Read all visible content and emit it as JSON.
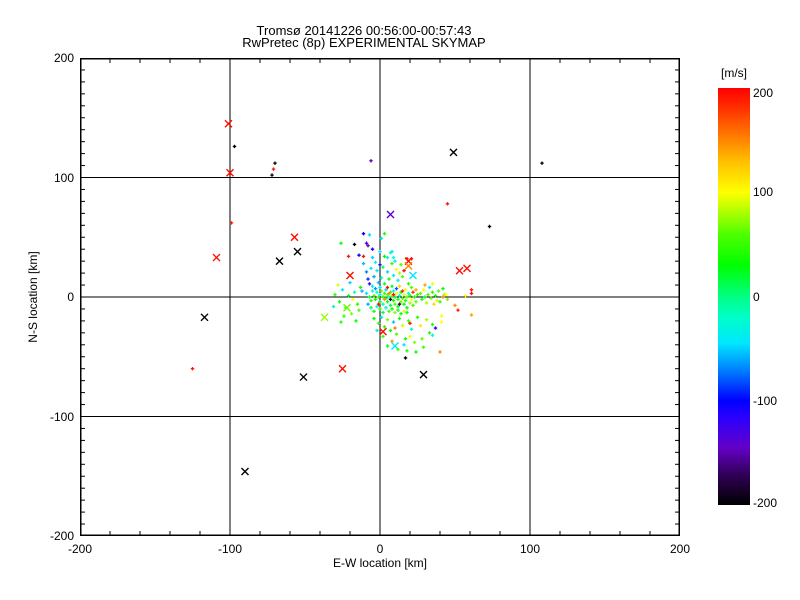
{
  "title": {
    "line1": "Tromsø 20141226 00:56:00-00:57:43",
    "line2": "RwPretec (8p) EXPERIMENTAL SKYMAP"
  },
  "axes": {
    "xlabel": "E-W location [km]",
    "ylabel": "N-S location [km]",
    "xlim": [
      -200,
      200
    ],
    "ylim": [
      -200,
      200
    ],
    "xticks": [
      -200,
      -100,
      0,
      100,
      200
    ],
    "yticks": [
      -200,
      -100,
      0,
      100,
      200
    ],
    "grid_lines": [
      -100,
      0,
      100
    ],
    "minor_x_step": 20,
    "minor_y_step": 10,
    "frame_color": "#000000",
    "background": "#ffffff"
  },
  "colorbar": {
    "label": "[m/s]",
    "ticks": [
      200,
      100,
      0,
      -100,
      -200
    ],
    "min": -200,
    "max": 200,
    "stops": [
      {
        "v": -200,
        "c": "#000000"
      },
      {
        "v": -170,
        "c": "#32005a"
      },
      {
        "v": -145,
        "c": "#6400c8"
      },
      {
        "v": -115,
        "c": "#2800ff"
      },
      {
        "v": -100,
        "c": "#0000ff"
      },
      {
        "v": -70,
        "c": "#0082ff"
      },
      {
        "v": -45,
        "c": "#00e6ff"
      },
      {
        "v": -20,
        "c": "#00ffc8"
      },
      {
        "v": 0,
        "c": "#00ff82"
      },
      {
        "v": 30,
        "c": "#00ff00"
      },
      {
        "v": 60,
        "c": "#50ff00"
      },
      {
        "v": 80,
        "c": "#aaff00"
      },
      {
        "v": 100,
        "c": "#ffff00"
      },
      {
        "v": 130,
        "c": "#ffbe00"
      },
      {
        "v": 155,
        "c": "#ff7800"
      },
      {
        "v": 180,
        "c": "#ff3200"
      },
      {
        "v": 200,
        "c": "#ff0000"
      }
    ]
  },
  "chart_data": {
    "type": "scatter",
    "xlabel": "E-W location [km]",
    "ylabel": "N-S location [km]",
    "value_label": "[m/s]",
    "point_format": "[x_km, y_km, velocity_ms, marker] marker 0=small plus, 1=large cross",
    "points": [
      [
        -101,
        145,
        195,
        1
      ],
      [
        -100,
        104,
        195,
        1
      ],
      [
        -109,
        33,
        195,
        1
      ],
      [
        -57,
        50,
        195,
        1
      ],
      [
        -55,
        38,
        -200,
        1
      ],
      [
        -67,
        30,
        -200,
        1
      ],
      [
        49,
        121,
        -200,
        1
      ],
      [
        7,
        69,
        -140,
        1
      ],
      [
        19,
        30,
        195,
        1
      ],
      [
        19,
        26,
        150,
        1
      ],
      [
        22,
        18,
        -45,
        1
      ],
      [
        53,
        22,
        195,
        1
      ],
      [
        58,
        24,
        195,
        1
      ],
      [
        -117,
        -17,
        -200,
        1
      ],
      [
        -51,
        -67,
        -200,
        1
      ],
      [
        -25,
        -60,
        195,
        1
      ],
      [
        -37,
        -17,
        75,
        1
      ],
      [
        -22,
        -9,
        65,
        1
      ],
      [
        -90,
        -146,
        -200,
        1
      ],
      [
        2,
        -29,
        195,
        1
      ],
      [
        10,
        -41,
        -45,
        1
      ],
      [
        29,
        -65,
        -200,
        1
      ],
      [
        -20,
        18,
        195,
        1
      ],
      [
        -97,
        126,
        -200,
        0
      ],
      [
        -70,
        112,
        -200,
        0
      ],
      [
        -71,
        107,
        190,
        0
      ],
      [
        -72,
        102,
        -200,
        0
      ],
      [
        -6,
        114,
        -150,
        0
      ],
      [
        -99,
        62,
        190,
        0
      ],
      [
        108,
        112,
        -200,
        0
      ],
      [
        45,
        78,
        190,
        0
      ],
      [
        73,
        59,
        -200,
        0
      ],
      [
        61,
        6,
        190,
        0
      ],
      [
        -125,
        -60,
        190,
        0
      ],
      [
        -26,
        45,
        30,
        0
      ],
      [
        -17,
        44,
        -200,
        0
      ],
      [
        17,
        -51,
        -200,
        0
      ],
      [
        40,
        -46,
        150,
        0
      ],
      [
        -11,
        53,
        -100,
        0
      ],
      [
        -7,
        52,
        -50,
        0
      ],
      [
        -9,
        45,
        -130,
        0
      ],
      [
        -8,
        43,
        -150,
        0
      ],
      [
        3,
        53,
        40,
        0
      ],
      [
        1,
        49,
        -30,
        0
      ],
      [
        -21,
        34,
        190,
        0
      ],
      [
        52,
        -11,
        190,
        0
      ],
      [
        61,
        -15,
        140,
        0
      ],
      [
        50,
        -7,
        150,
        0
      ],
      [
        57,
        1,
        100,
        0
      ],
      [
        61,
        3,
        195,
        0
      ],
      [
        37,
        -26,
        -120,
        0
      ],
      [
        20,
        -22,
        190,
        0
      ],
      [
        35,
        -32,
        -25,
        0
      ],
      [
        41,
        -16,
        100,
        0
      ],
      [
        41,
        -21,
        100,
        0
      ],
      [
        35,
        -23,
        40,
        0
      ],
      [
        42,
        0,
        150,
        0
      ],
      [
        43,
        2,
        75,
        0
      ],
      [
        18,
        32,
        195,
        0
      ],
      [
        21,
        32,
        195,
        0
      ],
      [
        -5,
        40,
        -110,
        0
      ],
      [
        0,
        38,
        -45,
        0
      ],
      [
        -14,
        35,
        -100,
        0
      ],
      [
        -11,
        34,
        195,
        0
      ],
      [
        -5,
        33,
        -50,
        0
      ],
      [
        8,
        38,
        -45,
        0
      ],
      [
        5,
        33,
        -30,
        0
      ],
      [
        9,
        33,
        -25,
        0
      ],
      [
        -6,
        24,
        -45,
        0
      ],
      [
        -11,
        28,
        -55,
        0
      ],
      [
        -3,
        29,
        -30,
        0
      ],
      [
        0,
        27,
        -110,
        0
      ],
      [
        3,
        34,
        30,
        0
      ],
      [
        7,
        37,
        -25,
        0
      ],
      [
        8,
        28,
        50,
        0
      ],
      [
        11,
        23,
        100,
        0
      ],
      [
        15,
        17,
        60,
        0
      ],
      [
        -9,
        21,
        -70,
        0
      ],
      [
        -2,
        22,
        -35,
        0
      ],
      [
        2,
        25,
        10,
        0
      ],
      [
        5,
        21,
        -50,
        0
      ],
      [
        -4,
        17,
        -60,
        0
      ],
      [
        1,
        16,
        -20,
        0
      ],
      [
        6,
        15,
        35,
        0
      ],
      [
        9,
        18,
        -45,
        0
      ],
      [
        -8,
        15,
        -90,
        0
      ],
      [
        12,
        14,
        -30,
        0
      ],
      [
        -1,
        12,
        -55,
        0
      ],
      [
        3,
        11,
        20,
        0
      ],
      [
        -5,
        9,
        -40,
        0
      ],
      [
        13,
        20,
        80,
        0
      ],
      [
        16,
        22,
        195,
        0
      ],
      [
        10,
        30,
        -40,
        0
      ],
      [
        14,
        27,
        60,
        0
      ],
      [
        -9,
        3,
        -45,
        0
      ],
      [
        -7,
        0,
        20,
        0
      ],
      [
        -6,
        -3,
        45,
        0
      ],
      [
        -5,
        5,
        -30,
        0
      ],
      [
        -4,
        1,
        60,
        0
      ],
      [
        -3,
        -2,
        30,
        0
      ],
      [
        -2,
        4,
        -20,
        0
      ],
      [
        -1,
        0,
        50,
        0
      ],
      [
        0,
        2,
        -35,
        0
      ],
      [
        0,
        -4,
        25,
        0
      ],
      [
        1,
        5,
        70,
        0
      ],
      [
        2,
        0,
        40,
        0
      ],
      [
        2,
        -6,
        -15,
        0
      ],
      [
        3,
        3,
        55,
        0
      ],
      [
        4,
        -1,
        20,
        0
      ],
      [
        4,
        6,
        -50,
        0
      ],
      [
        5,
        2,
        65,
        0
      ],
      [
        5,
        -4,
        35,
        0
      ],
      [
        6,
        0,
        -25,
        0
      ],
      [
        7,
        4,
        50,
        0
      ],
      [
        7,
        -7,
        15,
        0
      ],
      [
        8,
        1,
        80,
        0
      ],
      [
        9,
        -3,
        40,
        0
      ],
      [
        9,
        5,
        -40,
        0
      ],
      [
        10,
        0,
        25,
        0
      ],
      [
        10,
        -6,
        60,
        0
      ],
      [
        11,
        3,
        95,
        0
      ],
      [
        12,
        -2,
        45,
        0
      ],
      [
        12,
        -8,
        20,
        0
      ],
      [
        13,
        1,
        -30,
        0
      ],
      [
        14,
        -4,
        70,
        0
      ],
      [
        14,
        4,
        35,
        0
      ],
      [
        15,
        -1,
        55,
        0
      ],
      [
        16,
        -6,
        25,
        0
      ],
      [
        16,
        2,
        90,
        0
      ],
      [
        17,
        -3,
        45,
        0
      ],
      [
        18,
        0,
        60,
        0
      ],
      [
        18,
        -9,
        30,
        0
      ],
      [
        19,
        3,
        -20,
        0
      ],
      [
        20,
        -5,
        75,
        0
      ],
      [
        20,
        1,
        40,
        0
      ],
      [
        21,
        -2,
        100,
        0
      ],
      [
        22,
        -7,
        50,
        0
      ],
      [
        23,
        0,
        30,
        0
      ],
      [
        24,
        -4,
        65,
        0
      ],
      [
        25,
        2,
        45,
        0
      ],
      [
        -8,
        -6,
        -60,
        0
      ],
      [
        -6,
        -9,
        10,
        0
      ],
      [
        -4,
        -12,
        35,
        0
      ],
      [
        -2,
        -8,
        -25,
        0
      ],
      [
        0,
        -10,
        45,
        0
      ],
      [
        2,
        -13,
        20,
        0
      ],
      [
        4,
        -9,
        -35,
        0
      ],
      [
        6,
        -12,
        55,
        0
      ],
      [
        8,
        -10,
        30,
        0
      ],
      [
        10,
        -13,
        70,
        0
      ],
      [
        12,
        -11,
        40,
        0
      ],
      [
        14,
        -14,
        25,
        0
      ],
      [
        16,
        -12,
        90,
        0
      ],
      [
        18,
        -13,
        35,
        0
      ],
      [
        3,
        -2,
        145,
        0
      ],
      [
        6,
        3,
        150,
        0
      ],
      [
        11,
        7,
        -80,
        0
      ],
      [
        13,
        9,
        120,
        0
      ],
      [
        -3,
        7,
        -65,
        0
      ],
      [
        8,
        9,
        20,
        0
      ],
      [
        17,
        6,
        100,
        0
      ],
      [
        21,
        8,
        60,
        0
      ],
      [
        0,
        8,
        -45,
        0
      ],
      [
        -7,
        11,
        -120,
        0
      ],
      [
        24,
        6,
        140,
        0
      ],
      [
        19,
        11,
        45,
        0
      ],
      [
        7,
        -2,
        -195,
        0
      ],
      [
        13,
        -6,
        -170,
        0
      ],
      [
        5,
        8,
        195,
        0
      ],
      [
        15,
        5,
        190,
        0
      ],
      [
        22,
        4,
        185,
        0
      ],
      [
        -1,
        -6,
        190,
        0
      ],
      [
        9,
        2,
        195,
        0
      ],
      [
        27,
        3,
        60,
        0
      ],
      [
        28,
        -2,
        40,
        0
      ],
      [
        29,
        6,
        100,
        0
      ],
      [
        30,
        0,
        25,
        0
      ],
      [
        31,
        -5,
        80,
        0
      ],
      [
        32,
        2,
        55,
        0
      ],
      [
        33,
        8,
        -40,
        0
      ],
      [
        34,
        -1,
        70,
        0
      ],
      [
        35,
        4,
        45,
        0
      ],
      [
        36,
        -6,
        120,
        0
      ],
      [
        37,
        1,
        35,
        0
      ],
      [
        38,
        -3,
        90,
        0
      ],
      [
        39,
        5,
        60,
        0
      ],
      [
        40,
        -4,
        45,
        0
      ],
      [
        42,
        7,
        30,
        0
      ],
      [
        44,
        2,
        100,
        0
      ],
      [
        45,
        -2,
        70,
        0
      ],
      [
        30,
        10,
        140,
        0
      ],
      [
        35,
        11,
        95,
        0
      ],
      [
        -4,
        -18,
        30,
        0
      ],
      [
        -1,
        -22,
        55,
        0
      ],
      [
        1,
        -17,
        -40,
        0
      ],
      [
        3,
        -25,
        45,
        0
      ],
      [
        5,
        -19,
        70,
        0
      ],
      [
        7,
        -28,
        25,
        0
      ],
      [
        9,
        -21,
        -55,
        0
      ],
      [
        11,
        -31,
        60,
        0
      ],
      [
        13,
        -18,
        35,
        0
      ],
      [
        15,
        -24,
        90,
        0
      ],
      [
        17,
        -35,
        35,
        0
      ],
      [
        19,
        -20,
        50,
        0
      ],
      [
        21,
        -27,
        -30,
        0
      ],
      [
        23,
        -38,
        70,
        0
      ],
      [
        25,
        -17,
        45,
        0
      ],
      [
        27,
        -24,
        110,
        0
      ],
      [
        29,
        -42,
        55,
        0
      ],
      [
        31,
        -19,
        80,
        0
      ],
      [
        33,
        -30,
        40,
        0
      ],
      [
        8,
        -37,
        145,
        0
      ],
      [
        12,
        -44,
        60,
        0
      ],
      [
        16,
        -40,
        -45,
        0
      ],
      [
        20,
        -33,
        95,
        0
      ],
      [
        24,
        -46,
        30,
        0
      ],
      [
        2,
        -33,
        50,
        0
      ],
      [
        -2,
        -28,
        -35,
        0
      ],
      [
        5,
        -41,
        25,
        0
      ],
      [
        28,
        -35,
        65,
        0
      ],
      [
        18,
        -45,
        40,
        0
      ],
      [
        10,
        -26,
        155,
        0
      ],
      [
        -30,
        2,
        45,
        0
      ],
      [
        -27,
        -4,
        30,
        0
      ],
      [
        -25,
        6,
        -40,
        0
      ],
      [
        -23,
        -9,
        60,
        0
      ],
      [
        -21,
        1,
        25,
        0
      ],
      [
        -19,
        -14,
        70,
        0
      ],
      [
        -17,
        4,
        -30,
        0
      ],
      [
        -15,
        -6,
        45,
        0
      ],
      [
        -13,
        8,
        35,
        0
      ],
      [
        -28,
        10,
        90,
        0
      ],
      [
        -24,
        -16,
        50,
        0
      ],
      [
        -20,
        12,
        -50,
        0
      ],
      [
        -16,
        -20,
        30,
        0
      ],
      [
        -14,
        -11,
        55,
        0
      ],
      [
        -31,
        -8,
        -20,
        0
      ],
      [
        -18,
        -2,
        100,
        0
      ],
      [
        -12,
        5,
        -60,
        0
      ],
      [
        -26,
        -21,
        40,
        0
      ]
    ]
  }
}
